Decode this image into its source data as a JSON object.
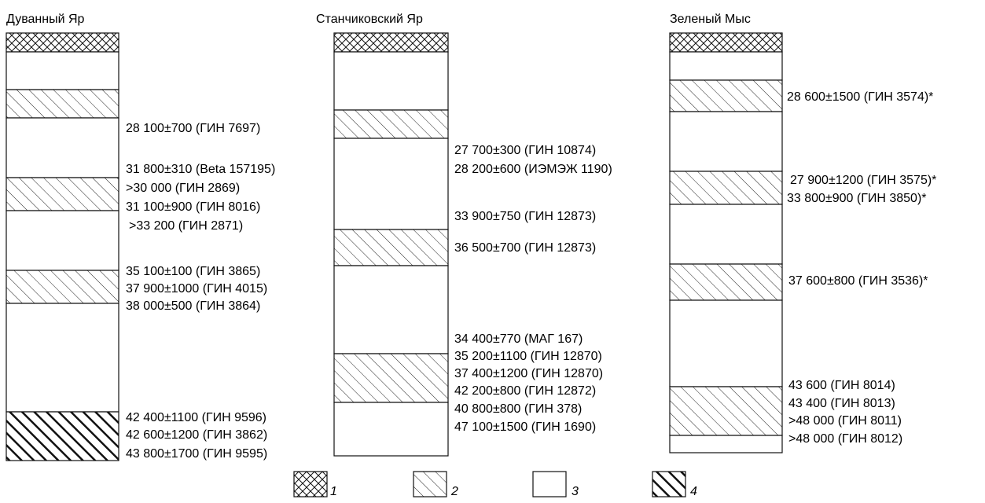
{
  "columns": [
    {
      "title": "Дуванный Яр",
      "layers": [
        {
          "type": "1",
          "top": 0,
          "bottom": 24
        },
        {
          "type": "3",
          "top": 24,
          "bottom": 72
        },
        {
          "type": "2",
          "top": 72,
          "bottom": 108
        },
        {
          "type": "3",
          "top": 108,
          "bottom": 184
        },
        {
          "type": "2",
          "top": 184,
          "bottom": 226
        },
        {
          "type": "3",
          "top": 226,
          "bottom": 302
        },
        {
          "type": "2",
          "top": 302,
          "bottom": 344
        },
        {
          "type": "3",
          "top": 344,
          "bottom": 482
        },
        {
          "type": "4",
          "top": 482,
          "bottom": 544
        }
      ],
      "dates": [
        "28 100±700 (ГИН 7697)",
        "31 800±310 (Beta 157195)",
        ">30 000 (ГИН 2869)",
        "31 100±900 (ГИН 8016)",
        ">33 200 (ГИН 2871)",
        "35 100±100 (ГИН 3865)",
        "37 900±1000 (ГИН 4015)",
        "38 000±500 (ГИН 3864)",
        "42 400±1100 (ГИН 9596)",
        "42 600±1200 (ГИН 3862)",
        "43 800±1700 (ГИН 9595)"
      ]
    },
    {
      "title": "Станчиковский Яр",
      "layers": [
        {
          "type": "1",
          "top": 0,
          "bottom": 24
        },
        {
          "type": "3",
          "top": 24,
          "bottom": 98
        },
        {
          "type": "2",
          "top": 98,
          "bottom": 134
        },
        {
          "type": "3",
          "top": 134,
          "bottom": 250
        },
        {
          "type": "2",
          "top": 250,
          "bottom": 296
        },
        {
          "type": "3",
          "top": 296,
          "bottom": 408
        },
        {
          "type": "2",
          "top": 408,
          "bottom": 470
        },
        {
          "type": "3",
          "top": 470,
          "bottom": 538
        }
      ],
      "dates": [
        "27 700±300 (ГИН 10874)",
        "28 200±600 (ИЭМЭЖ 1190)",
        "33 900±750 (ГИН 12873)",
        "36 500±700 (ГИН 12873)",
        "34 400±770 (МАГ 167)",
        "35 200±1100 (ГИН 12870)",
        "37 400±1200 (ГИН 12870)",
        "42 200±800 (ГИН 12872)",
        "40 800±800 (ГИН 378)",
        "47 100±1500 (ГИН 1690)"
      ]
    },
    {
      "title": "Зеленый Мыс",
      "layers": [
        {
          "type": "1",
          "top": 0,
          "bottom": 24
        },
        {
          "type": "3",
          "top": 24,
          "bottom": 60
        },
        {
          "type": "2",
          "top": 60,
          "bottom": 100
        },
        {
          "type": "3",
          "top": 100,
          "bottom": 176
        },
        {
          "type": "2",
          "top": 176,
          "bottom": 218
        },
        {
          "type": "3",
          "top": 218,
          "bottom": 294
        },
        {
          "type": "2",
          "top": 294,
          "bottom": 340
        },
        {
          "type": "3",
          "top": 340,
          "bottom": 450
        },
        {
          "type": "2",
          "top": 450,
          "bottom": 512
        },
        {
          "type": "3",
          "top": 512,
          "bottom": 534
        }
      ],
      "dates": [
        "28 600±1500 (ГИН 3574)*",
        "27 900±1200 (ГИН 3575)*",
        "33 800±900 (ГИН 3850)*",
        "37 600±800 (ГИН 3536)*",
        "43 600 (ГИН 8014)",
        "43 400 (ГИН 8013)",
        ">48 000 (ГИН 8011)",
        ">48 000 (ГИН 8012)"
      ]
    }
  ],
  "legend": [
    {
      "type": "1",
      "label": "1"
    },
    {
      "type": "2",
      "label": "2"
    },
    {
      "type": "3",
      "label": "3"
    },
    {
      "type": "4",
      "label": "4"
    }
  ]
}
